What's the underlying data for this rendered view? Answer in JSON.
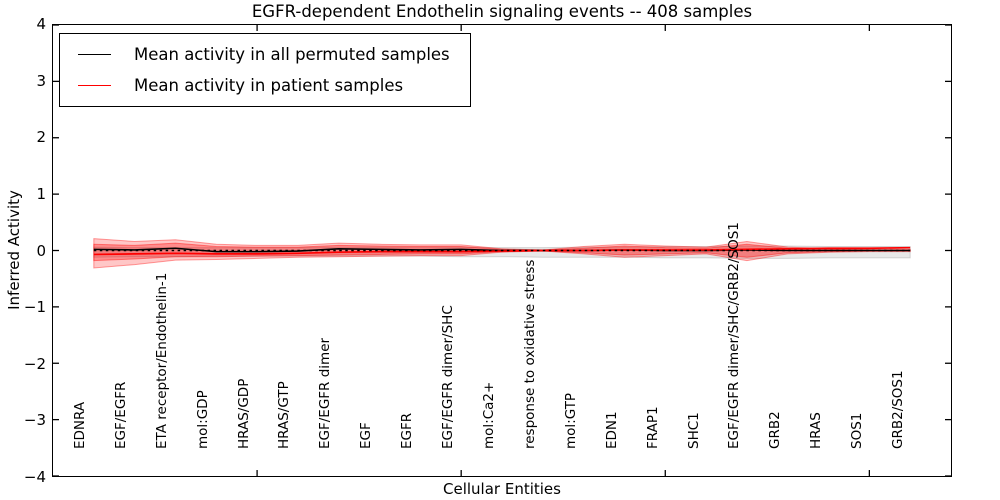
{
  "title": "EGFR-dependent Endothelin signaling events -- 408 samples",
  "axes": {
    "ylabel": "Inferred Activity",
    "xlabel": "Cellular Entities",
    "ylim": [
      -4,
      4
    ],
    "xlim": [
      0,
      22
    ],
    "yticks": [
      {
        "value": 4,
        "label": "4"
      },
      {
        "value": 3,
        "label": "3"
      },
      {
        "value": 2,
        "label": "2"
      },
      {
        "value": 1,
        "label": "1"
      },
      {
        "value": 0,
        "label": "0"
      },
      {
        "value": -1,
        "label": "−1"
      },
      {
        "value": -2,
        "label": "−2"
      },
      {
        "value": -3,
        "label": "−3"
      },
      {
        "value": -4,
        "label": "−4"
      }
    ],
    "xticks": [
      5,
      10,
      15,
      20
    ],
    "grid": false
  },
  "legend": {
    "position": "upper-left",
    "items": [
      {
        "label": "Mean activity in all permuted samples",
        "color": "#000000",
        "style": "solid"
      },
      {
        "label": "Mean activity in patient samples",
        "color": "#ff0000",
        "style": "solid"
      }
    ]
  },
  "colors": {
    "permuted_line": "#000000",
    "patient_line": "#ff0000",
    "zero_line": "#000000",
    "permuted_band_fill": "rgba(0,0,0,0.09)",
    "permuted_band_edge": "rgba(0,0,0,0.14)",
    "patient_band_outer_fill": "rgba(255,0,0,0.22)",
    "patient_band_outer_edge": "rgba(255,0,0,0.38)",
    "patient_band_inner_fill": "rgba(255,0,0,0.30)",
    "patient_band_inner_edge": "rgba(255,0,0,0.40)"
  },
  "chart_data": {
    "type": "line",
    "title": "EGFR-dependent Endothelin signaling events -- 408 samples",
    "xlabel": "Cellular Entities",
    "ylabel": "Inferred Activity",
    "ylim": [
      -4,
      4
    ],
    "xlim": [
      0,
      22
    ],
    "legend_position": "upper-left",
    "categories": [
      "EDNRA",
      "EGF/EGFR",
      "ETA receptor/Endothelin-1",
      "mol:GDP",
      "HRAS/GDP",
      "HRAS/GTP",
      "EGF/EGFR dimer",
      "EGF",
      "EGFR",
      "EGF/EGFR dimer/SHC",
      "mol:Ca2+",
      "response to oxidative stress",
      "mol:GTP",
      "EDN1",
      "FRAP1",
      "SHC1",
      "EGF/EGFR dimer/SHC/GRB2/SOS1",
      "GRB2",
      "HRAS",
      "SOS1",
      "GRB2/SOS1"
    ],
    "series": [
      {
        "name": "Mean activity in all permuted samples",
        "color": "#000000",
        "style": "solid",
        "values": [
          0.02,
          0.01,
          0.04,
          -0.02,
          -0.02,
          -0.01,
          0.03,
          0.02,
          0.01,
          0.02,
          0.0,
          0.0,
          0.0,
          0.01,
          0.0,
          0.0,
          0.01,
          0.0,
          0.0,
          0.0,
          0.0
        ]
      },
      {
        "name": "Mean activity in patient samples",
        "color": "#ff0000",
        "style": "solid",
        "values": [
          -0.07,
          -0.06,
          -0.05,
          -0.06,
          -0.06,
          -0.05,
          -0.03,
          -0.02,
          -0.02,
          -0.02,
          -0.01,
          0.0,
          0.0,
          0.01,
          0.01,
          0.01,
          0.02,
          0.03,
          0.04,
          0.04,
          0.05
        ]
      }
    ],
    "zero_line": {
      "value": 0,
      "style": "dotted",
      "color": "#000000"
    },
    "bands": [
      {
        "name": "permuted-activity-range",
        "fill": "rgba(0,0,0,0.09)",
        "stroke": "rgba(0,0,0,0.14)",
        "upper": [
          0.06,
          0.05,
          0.05,
          0.05,
          0.05,
          0.05,
          0.06,
          0.06,
          0.06,
          0.06,
          0.05,
          0.05,
          0.06,
          0.06,
          0.07,
          0.07,
          0.08,
          0.08,
          0.07,
          0.07,
          0.07
        ],
        "lower": [
          -0.12,
          -0.11,
          -0.11,
          -0.1,
          -0.1,
          -0.1,
          -0.1,
          -0.1,
          -0.1,
          -0.11,
          -0.11,
          -0.12,
          -0.12,
          -0.12,
          -0.13,
          -0.13,
          -0.14,
          -0.14,
          -0.13,
          -0.13,
          -0.13
        ]
      },
      {
        "name": "patient-activity-outer-band",
        "fill": "rgba(255,0,0,0.22)",
        "stroke": "rgba(255,0,0,0.38)",
        "upper": [
          0.21,
          0.16,
          0.19,
          0.11,
          0.09,
          0.09,
          0.13,
          0.11,
          0.1,
          0.1,
          0.03,
          0.01,
          0.07,
          0.11,
          0.08,
          0.06,
          0.16,
          0.06,
          0.03,
          0.02,
          0.02
        ],
        "lower": [
          -0.31,
          -0.25,
          -0.17,
          -0.16,
          -0.14,
          -0.12,
          -0.11,
          -0.1,
          -0.09,
          -0.09,
          -0.03,
          -0.01,
          -0.06,
          -0.12,
          -0.09,
          -0.06,
          -0.18,
          -0.06,
          -0.03,
          -0.02,
          -0.02
        ]
      },
      {
        "name": "patient-activity-inner-band",
        "fill": "rgba(255,0,0,0.30)",
        "stroke": "rgba(255,0,0,0.40)",
        "upper": [
          0.11,
          0.09,
          0.13,
          0.07,
          0.06,
          0.06,
          0.09,
          0.08,
          0.07,
          0.07,
          0.02,
          0.01,
          0.04,
          0.08,
          0.05,
          0.04,
          0.11,
          0.04,
          0.02,
          0.01,
          0.01
        ],
        "lower": [
          -0.18,
          -0.15,
          -0.11,
          -0.11,
          -0.1,
          -0.09,
          -0.08,
          -0.07,
          -0.06,
          -0.06,
          -0.02,
          -0.01,
          -0.04,
          -0.08,
          -0.06,
          -0.04,
          -0.12,
          -0.04,
          -0.02,
          -0.01,
          -0.01
        ]
      }
    ]
  }
}
